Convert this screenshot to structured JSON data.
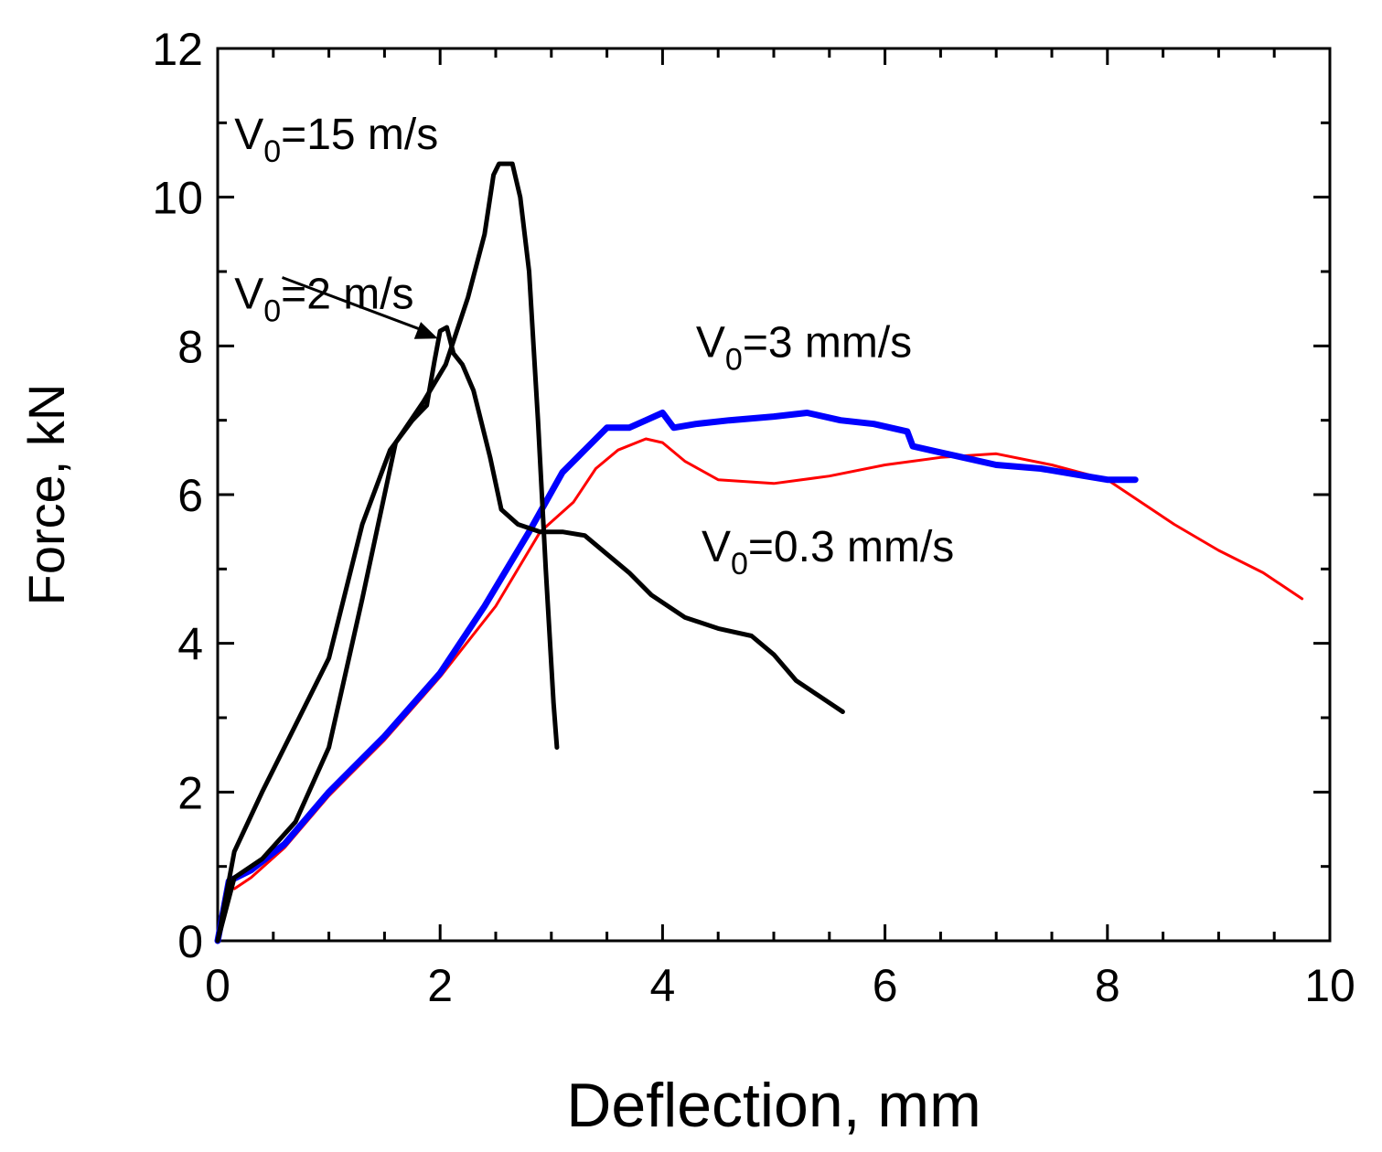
{
  "chart_data": {
    "type": "line",
    "title": "",
    "xlabel": "Deflection, mm",
    "ylabel": "Force, kN",
    "xlim": [
      0,
      10
    ],
    "ylim": [
      0,
      12
    ],
    "xticks": [
      "0",
      "2",
      "4",
      "6",
      "8",
      "10"
    ],
    "yticks": [
      "0",
      "2",
      "4",
      "6",
      "8",
      "10",
      "12"
    ],
    "grid": false,
    "legend": "none",
    "annotations": [
      {
        "id": "v15",
        "main": "V",
        "sub": "0",
        "rest": "=15 m/s",
        "x": 0.15,
        "y": 10.65
      },
      {
        "id": "v2",
        "main": "V",
        "sub": "0",
        "rest": "=2 m/s",
        "x": 0.15,
        "y": 8.5
      },
      {
        "id": "v3",
        "main": "V",
        "sub": "0",
        "rest": "=3 mm/s",
        "x": 4.3,
        "y": 7.85
      },
      {
        "id": "v03",
        "main": "V",
        "sub": "0",
        "rest": "=0.3 mm/s",
        "x": 4.35,
        "y": 5.1
      }
    ],
    "arrow": {
      "from": [
        0.58,
        8.92
      ],
      "to": [
        1.98,
        8.1
      ]
    },
    "series": [
      {
        "name": "V0=15 m/s",
        "color": "#000000",
        "x": [
          0,
          0.15,
          0.4,
          0.7,
          1.0,
          1.3,
          1.6,
          1.85,
          2.05,
          2.25,
          2.4,
          2.48,
          2.53,
          2.65,
          2.72,
          2.8,
          2.88,
          2.95,
          3.02,
          3.05
        ],
        "y": [
          0,
          0.85,
          1.1,
          1.6,
          2.6,
          4.6,
          6.7,
          7.25,
          7.75,
          8.65,
          9.5,
          10.3,
          10.45,
          10.45,
          10.0,
          9.0,
          7.0,
          5.0,
          3.2,
          2.6
        ]
      },
      {
        "name": "V0=2 m/s",
        "color": "#000000",
        "x": [
          0,
          0.15,
          0.4,
          0.7,
          1.0,
          1.3,
          1.55,
          1.75,
          1.88,
          1.95,
          2.0,
          2.06,
          2.12,
          2.2,
          2.3,
          2.45,
          2.55,
          2.7,
          2.9,
          3.1,
          3.3,
          3.5,
          3.7,
          3.9,
          4.2,
          4.5,
          4.8,
          5.0,
          5.2,
          5.4,
          5.55,
          5.62
        ],
        "y": [
          0,
          1.2,
          2.0,
          2.9,
          3.8,
          5.6,
          6.6,
          7.0,
          7.2,
          7.8,
          8.2,
          8.25,
          7.9,
          7.75,
          7.4,
          6.5,
          5.8,
          5.6,
          5.5,
          5.5,
          5.45,
          5.2,
          4.95,
          4.65,
          4.35,
          4.2,
          4.1,
          3.85,
          3.5,
          3.3,
          3.15,
          3.08
        ]
      },
      {
        "name": "V0=3 mm/s",
        "color": "#0000ff",
        "x": [
          0,
          0.1,
          0.3,
          0.6,
          1.0,
          1.5,
          2.0,
          2.4,
          2.8,
          3.1,
          3.3,
          3.5,
          3.7,
          3.85,
          4.0,
          4.1,
          4.3,
          4.6,
          5.0,
          5.3,
          5.6,
          5.9,
          6.2,
          6.25,
          6.4,
          6.7,
          7.0,
          7.4,
          7.8,
          8.0,
          8.25
        ],
        "y": [
          0,
          0.8,
          0.95,
          1.3,
          2.0,
          2.75,
          3.6,
          4.5,
          5.5,
          6.3,
          6.6,
          6.9,
          6.9,
          7.0,
          7.1,
          6.9,
          6.95,
          7.0,
          7.05,
          7.1,
          7.0,
          6.95,
          6.85,
          6.65,
          6.6,
          6.5,
          6.4,
          6.35,
          6.25,
          6.2,
          6.2
        ]
      },
      {
        "name": "V0=0.3 mm/s",
        "color": "#ff0000",
        "x": [
          0.15,
          0.3,
          0.6,
          1.0,
          1.5,
          2.0,
          2.5,
          2.9,
          3.2,
          3.4,
          3.6,
          3.85,
          4.0,
          4.2,
          4.5,
          5.0,
          5.5,
          6.0,
          6.5,
          7.0,
          7.5,
          8.0,
          8.3,
          8.6,
          9.0,
          9.4,
          9.75
        ],
        "y": [
          0.7,
          0.85,
          1.25,
          1.95,
          2.7,
          3.55,
          4.5,
          5.5,
          5.9,
          6.35,
          6.6,
          6.75,
          6.7,
          6.45,
          6.2,
          6.15,
          6.25,
          6.4,
          6.5,
          6.55,
          6.4,
          6.2,
          5.9,
          5.6,
          5.25,
          4.95,
          4.6
        ]
      }
    ]
  }
}
